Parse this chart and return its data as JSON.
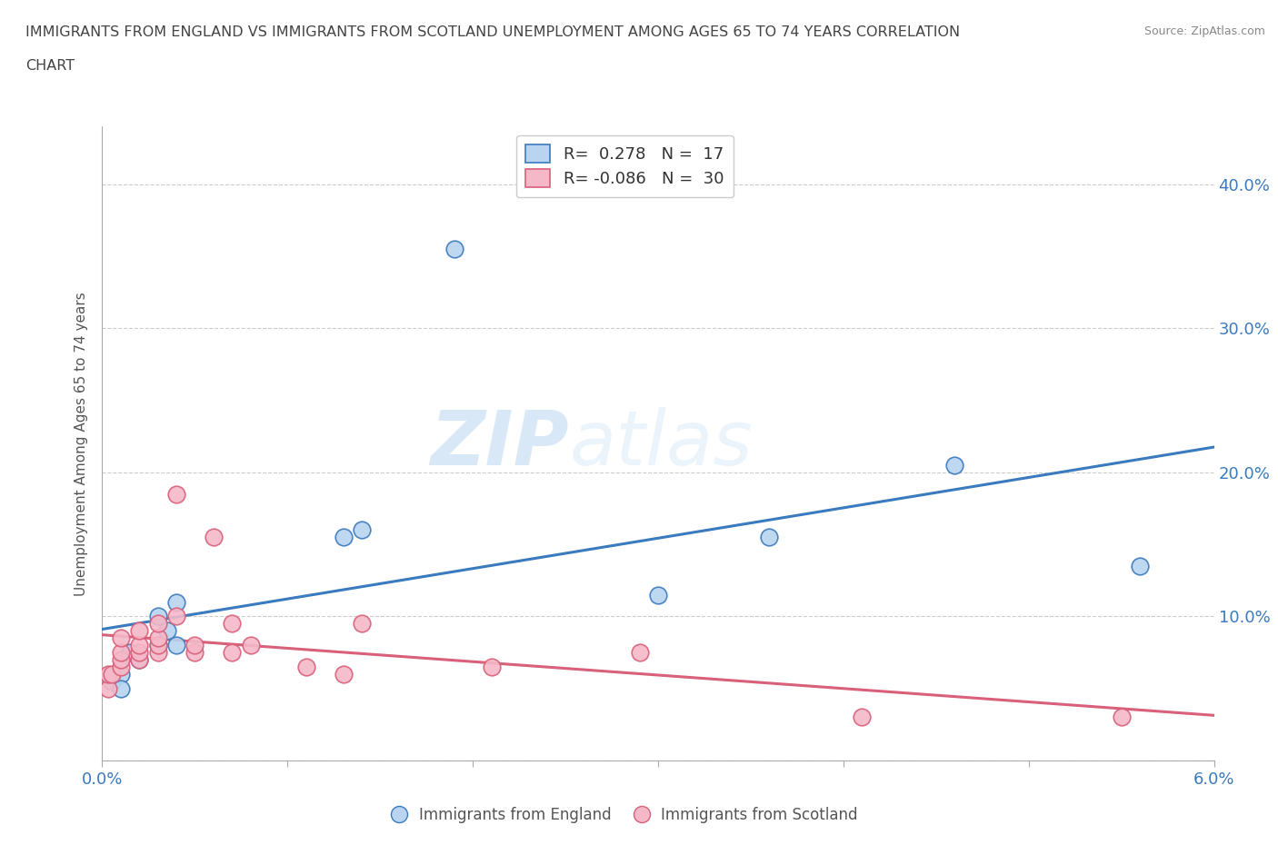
{
  "title_line1": "IMMIGRANTS FROM ENGLAND VS IMMIGRANTS FROM SCOTLAND UNEMPLOYMENT AMONG AGES 65 TO 74 YEARS CORRELATION",
  "title_line2": "CHART",
  "source": "Source: ZipAtlas.com",
  "ylabel": "Unemployment Among Ages 65 to 74 years",
  "xlim": [
    0.0,
    0.06
  ],
  "ylim": [
    0.0,
    0.44
  ],
  "england_color": "#b8d4f0",
  "scotland_color": "#f5b8c8",
  "england_R": 0.278,
  "england_N": 17,
  "scotland_R": -0.086,
  "scotland_N": 30,
  "england_line_color": "#3a7abf",
  "scotland_line_color": "#d9607a",
  "england_scatter_x": [
    0.0005,
    0.001,
    0.001,
    0.0015,
    0.002,
    0.003,
    0.003,
    0.0035,
    0.004,
    0.004,
    0.013,
    0.014,
    0.019,
    0.03,
    0.036,
    0.046,
    0.056
  ],
  "england_scatter_y": [
    0.055,
    0.06,
    0.05,
    0.075,
    0.07,
    0.1,
    0.08,
    0.09,
    0.08,
    0.11,
    0.155,
    0.16,
    0.355,
    0.115,
    0.155,
    0.205,
    0.135
  ],
  "scotland_scatter_x": [
    0.0003,
    0.0003,
    0.0005,
    0.001,
    0.001,
    0.001,
    0.001,
    0.002,
    0.002,
    0.002,
    0.002,
    0.003,
    0.003,
    0.003,
    0.003,
    0.004,
    0.004,
    0.005,
    0.005,
    0.006,
    0.007,
    0.007,
    0.008,
    0.011,
    0.013,
    0.014,
    0.021,
    0.029,
    0.041,
    0.055
  ],
  "scotland_scatter_y": [
    0.05,
    0.06,
    0.06,
    0.065,
    0.07,
    0.075,
    0.085,
    0.07,
    0.075,
    0.08,
    0.09,
    0.075,
    0.08,
    0.085,
    0.095,
    0.1,
    0.185,
    0.075,
    0.08,
    0.155,
    0.075,
    0.095,
    0.08,
    0.065,
    0.06,
    0.095,
    0.065,
    0.075,
    0.03,
    0.03
  ],
  "watermark_ZIP": "ZIP",
  "watermark_atlas": "atlas",
  "legend_england_label": "Immigrants from England",
  "legend_scotland_label": "Immigrants from Scotland"
}
